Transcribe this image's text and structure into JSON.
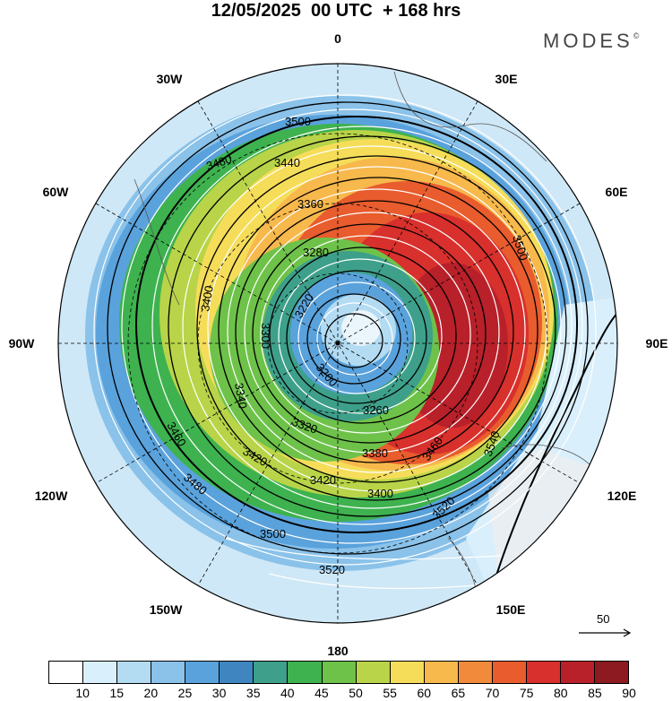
{
  "header": {
    "title": "12/05/2025  00 UTC  + 168 hrs",
    "brand": "MODES",
    "brand_mark": "©"
  },
  "map": {
    "projection": "north polar stereographic",
    "longitude_labels": {
      "top": "0",
      "top_right": "30E",
      "right_upper": "60E",
      "right": "90E",
      "right_lower": "120E",
      "bottom_right": "150E",
      "bottom": "180",
      "bottom_left": "150W",
      "left_lower": "120W",
      "left": "90W",
      "left_upper": "60W",
      "top_left": "30W"
    },
    "contour_labels": [
      "3500",
      "3480",
      "3440",
      "3360",
      "3280",
      "3220",
      "3200",
      "3260",
      "3320",
      "3380",
      "3420",
      "3460",
      "3400",
      "3520",
      "3540",
      "3340",
      "3300",
      "3500",
      "3480",
      "3420",
      "3400",
      "3460",
      "3520",
      "3500"
    ],
    "reference_vector": "50"
  },
  "colorbar": {
    "ticks": [
      "10",
      "15",
      "20",
      "25",
      "30",
      "35",
      "40",
      "45",
      "50",
      "55",
      "60",
      "65",
      "70",
      "75",
      "80",
      "85",
      "90"
    ],
    "colors": [
      "#ffffff",
      "#d9effb",
      "#b3dcf3",
      "#8ac2ea",
      "#5aa2dc",
      "#3f86c0",
      "#3ea08a",
      "#3eb24f",
      "#6ec24a",
      "#b9d448",
      "#f5dd5a",
      "#f7b84c",
      "#f18a3a",
      "#e85c2e",
      "#d8302c",
      "#b8202a",
      "#8c1a20"
    ]
  }
}
